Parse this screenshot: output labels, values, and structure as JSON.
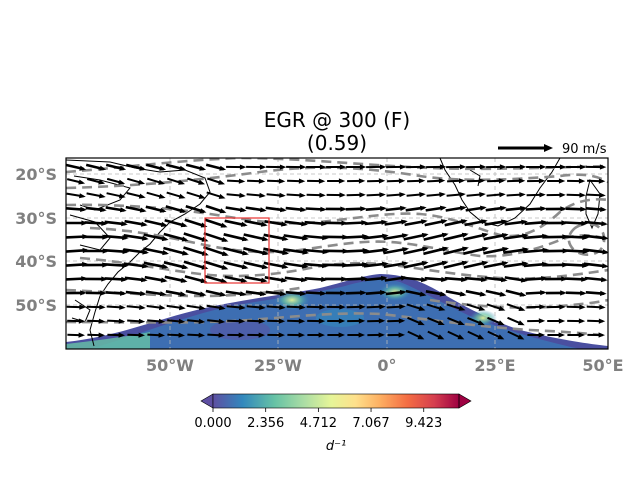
{
  "figure": {
    "title": "EGR @ 300 (F)",
    "subtitle": "(0.59)"
  },
  "map": {
    "lat_labels": [
      "20°S",
      "30°S",
      "40°S",
      "50°S"
    ],
    "lon_labels": [
      "50°W",
      "25°W",
      "0°",
      "25°E",
      "50°E"
    ],
    "extent_lon": [
      -75,
      50
    ],
    "extent_lat": [
      -60,
      -16
    ],
    "highlight_box": {
      "lon": [
        -42,
        -27
      ],
      "lat": [
        -45,
        -30
      ],
      "color": "#e8312f"
    },
    "field_colormap": "Spectral_r"
  },
  "quiver_key": {
    "label": "90 m/s"
  },
  "colorbar": {
    "ticks": [
      "0.000",
      "2.356",
      "4.712",
      "7.067",
      "9.423"
    ],
    "unit": "d⁻¹",
    "range": [
      0,
      11.0
    ],
    "colors": [
      "#5e4fa2",
      "#3288bd",
      "#66c2a5",
      "#abdda4",
      "#e6f598",
      "#fee08b",
      "#fdae61",
      "#f46d43",
      "#d53e4f",
      "#9e0142"
    ]
  }
}
